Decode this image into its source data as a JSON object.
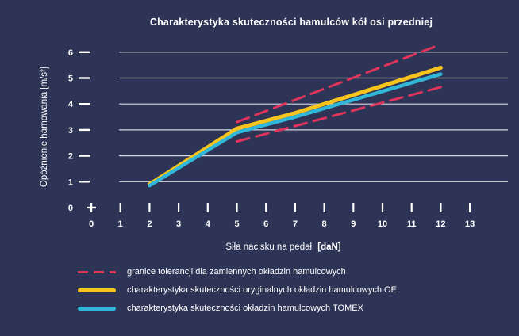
{
  "page": {
    "background": "#2e3456",
    "text_color": "#ffffff",
    "gridline_color": "rgba(255,255,255,0.8)"
  },
  "chart_data": {
    "type": "line",
    "title": "Charakterystyka skuteczności hamulców kół osi przedniej",
    "xlabel": "Siła nacisku na pedał",
    "xlabel_unit": "[daN]",
    "ylabel": "Opóźnienie hamowania [m/s²]",
    "xlim": [
      0,
      13
    ],
    "ylim": [
      0,
      6
    ],
    "x_ticks": [
      0,
      1,
      2,
      3,
      4,
      5,
      6,
      7,
      8,
      9,
      10,
      11,
      12,
      13
    ],
    "y_ticks": [
      0,
      1,
      2,
      3,
      4,
      5,
      6
    ],
    "grid": "horizontal",
    "legend_position": "bottom-left",
    "series": [
      {
        "name": "tolerance-upper",
        "group": "granice tolerancji dla zamiennych okładzin hamulcowych",
        "color": "#e0345c",
        "style": "dashed",
        "width": 3,
        "points": [
          [
            5,
            3.3
          ],
          [
            12,
            6.3
          ]
        ]
      },
      {
        "name": "tolerance-lower",
        "group": "granice tolerancji dla zamiennych okładzin hamulcowych",
        "color": "#e0345c",
        "style": "dashed",
        "width": 3,
        "points": [
          [
            5,
            2.55
          ],
          [
            12,
            4.65
          ]
        ]
      },
      {
        "name": "oe-linings",
        "group": "charakterystyka skuteczności oryginalnych okładzin hamulcowych OE",
        "color": "#f6c41d",
        "style": "solid",
        "width": 5,
        "points": [
          [
            2,
            0.9
          ],
          [
            5,
            3.05
          ],
          [
            7,
            3.65
          ],
          [
            12,
            5.4
          ]
        ]
      },
      {
        "name": "tomex-linings",
        "group": "charakterystyka skuteczności okładzin hamulcowych TOMEX",
        "color": "#31b7d8",
        "style": "solid",
        "width": 4.5,
        "points": [
          [
            2,
            0.85
          ],
          [
            5,
            2.9
          ],
          [
            7,
            3.5
          ],
          [
            12,
            5.15
          ]
        ]
      }
    ],
    "legend": [
      {
        "label": "granice tolerancji dla zamiennych okładzin hamulcowych",
        "color": "#e0345c",
        "style": "dashed"
      },
      {
        "label": "charakterystyka skuteczności oryginalnych okładzin hamulcowych OE",
        "color": "#f6c41d",
        "style": "solid"
      },
      {
        "label": "charakterystyka skuteczności okładzin hamulcowych TOMEX",
        "color": "#31b7d8",
        "style": "solid"
      }
    ]
  }
}
